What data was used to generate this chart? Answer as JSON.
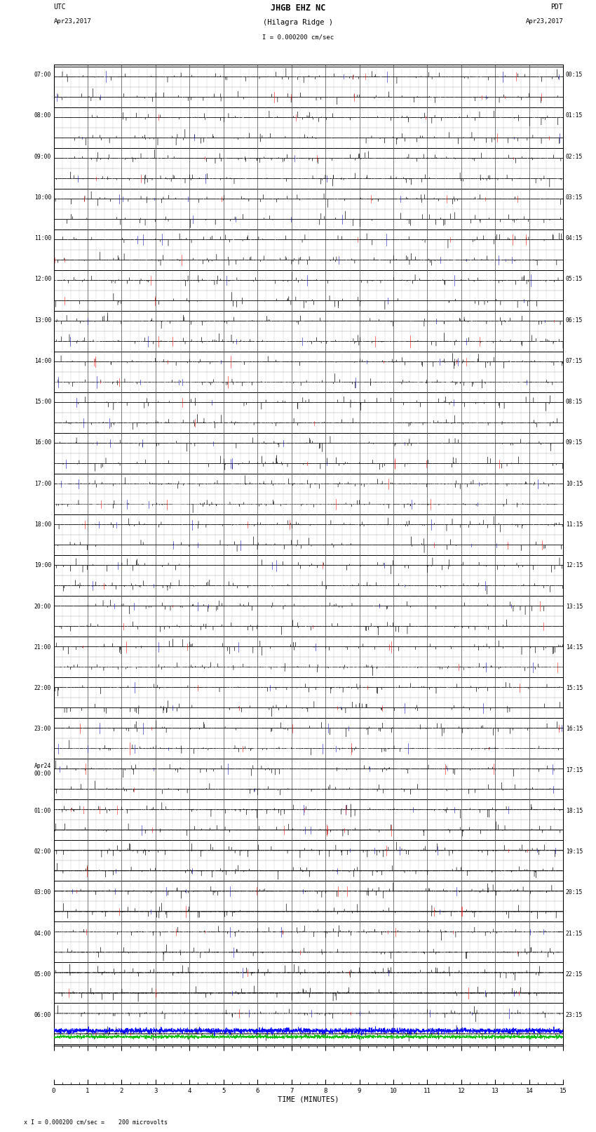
{
  "title_line1": "JHGB EHZ NC",
  "title_line2": "(Hilagra Ridge )",
  "scale_label": "I = 0.000200 cm/sec",
  "footer_note": "x I = 0.000200 cm/sec =    200 microvolts",
  "xlabel": "TIME (MINUTES)",
  "xlim": [
    0,
    15
  ],
  "num_traces": 48,
  "trace_duration_min": 15,
  "sample_rate": 50,
  "bg_color": "#ffffff",
  "trace_color": "#000000",
  "noise_scale": 0.25,
  "spike_prob": 0.0015,
  "spike_scale": 4.0,
  "left_times": [
    "07:00",
    "",
    "08:00",
    "",
    "09:00",
    "",
    "10:00",
    "",
    "11:00",
    "",
    "12:00",
    "",
    "13:00",
    "",
    "14:00",
    "",
    "15:00",
    "",
    "16:00",
    "",
    "17:00",
    "",
    "18:00",
    "",
    "19:00",
    "",
    "20:00",
    "",
    "21:00",
    "",
    "22:00",
    "",
    "23:00",
    "",
    "Apr24\n00:00",
    "",
    "01:00",
    "",
    "02:00",
    "",
    "03:00",
    "",
    "04:00",
    "",
    "05:00",
    "",
    "06:00",
    ""
  ],
  "right_times": [
    "00:15",
    "",
    "01:15",
    "",
    "02:15",
    "",
    "03:15",
    "",
    "04:15",
    "",
    "05:15",
    "",
    "06:15",
    "",
    "07:15",
    "",
    "08:15",
    "",
    "09:15",
    "",
    "10:15",
    "",
    "11:15",
    "",
    "12:15",
    "",
    "13:15",
    "",
    "14:15",
    "",
    "15:15",
    "",
    "16:15",
    "",
    "17:15",
    "",
    "18:15",
    "",
    "19:15",
    "",
    "20:15",
    "",
    "21:15",
    "",
    "22:15",
    "",
    "23:15",
    ""
  ],
  "grid_color": "#888888",
  "axis_color": "#000000",
  "bottom_bar_blue": "#0000ff",
  "bottom_bar_green": "#00bb00",
  "trace_colors": [
    "#000000",
    "#ff0000",
    "#0000bb"
  ]
}
